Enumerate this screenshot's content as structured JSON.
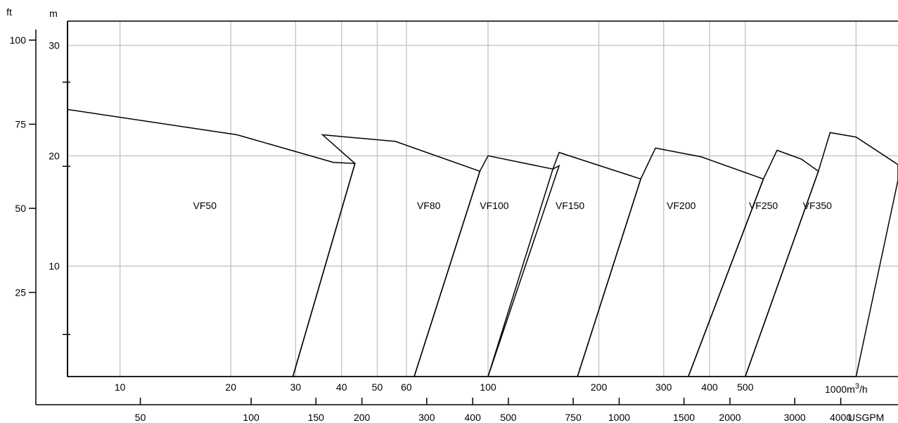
{
  "chart_data": {
    "type": "area",
    "title": "",
    "units": {
      "head_m": "m",
      "head_ft": "ft",
      "flow_m3h_prefix": "1000m",
      "flow_m3h_sup": "3",
      "flow_m3h_suffix": "/h",
      "flow_usgpm": "USGPM"
    },
    "flow_scale": "log",
    "xlim_m3h": [
      7.2,
      1300
    ],
    "ylim_m": [
      0,
      32.2
    ],
    "grid": true,
    "m3h_ticks": [
      {
        "value": 10,
        "label": "10"
      },
      {
        "value": 20,
        "label": "20"
      },
      {
        "value": 30,
        "label": "30"
      },
      {
        "value": 40,
        "label": "40"
      },
      {
        "value": 50,
        "label": "50"
      },
      {
        "value": 60,
        "label": "60"
      },
      {
        "value": 100,
        "label": "100"
      },
      {
        "value": 200,
        "label": "200"
      },
      {
        "value": 300,
        "label": "300"
      },
      {
        "value": 400,
        "label": "400"
      },
      {
        "value": 500,
        "label": "500"
      },
      {
        "value": 1000,
        "label": ""
      }
    ],
    "usgpm_ticks": [
      {
        "value": 50,
        "label": "50"
      },
      {
        "value": 100,
        "label": "100"
      },
      {
        "value": 150,
        "label": "150"
      },
      {
        "value": 200,
        "label": "200"
      },
      {
        "value": 300,
        "label": "300"
      },
      {
        "value": 400,
        "label": "400"
      },
      {
        "value": 500,
        "label": "500"
      },
      {
        "value": 750,
        "label": "750"
      },
      {
        "value": 1000,
        "label": "1000"
      },
      {
        "value": 1500,
        "label": "1500"
      },
      {
        "value": 2000,
        "label": "2000"
      },
      {
        "value": 3000,
        "label": "3000"
      },
      {
        "value": 4000,
        "label": "4000"
      }
    ],
    "m_ticks": [
      {
        "value": 10,
        "label": "10"
      },
      {
        "value": 20,
        "label": "20"
      },
      {
        "value": 30,
        "label": "30"
      }
    ],
    "ft_ticks": [
      {
        "value": 25,
        "label": "25"
      },
      {
        "value": 50,
        "label": "50"
      },
      {
        "value": 75,
        "label": "75"
      },
      {
        "value": 100,
        "label": "100"
      }
    ],
    "ft_minor_ticks": [
      12.5,
      62.5,
      87.5
    ],
    "series": [
      {
        "name": "VF50",
        "label_at": [
          17,
          15.5
        ],
        "boundary": [
          [
            7.2,
            24.2
          ],
          [
            20.8,
            21.9
          ],
          [
            38.0,
            19.4
          ],
          [
            43.5,
            19.3
          ],
          [
            29.5,
            0
          ],
          [
            7.2,
            0
          ]
        ]
      },
      {
        "name": "VF80",
        "label_at": [
          69,
          15.5
        ],
        "boundary": [
          [
            35.5,
            21.9
          ],
          [
            56,
            21.3
          ],
          [
            95,
            18.6
          ],
          [
            63,
            0
          ],
          [
            29.5,
            0
          ],
          [
            43.5,
            19.3
          ]
        ]
      },
      {
        "name": "VF100",
        "label_at": [
          104,
          15.5
        ],
        "boundary": [
          [
            100,
            20.0
          ],
          [
            150,
            18.8
          ],
          [
            156,
            19.1
          ],
          [
            100,
            0
          ],
          [
            63,
            0
          ],
          [
            95,
            18.6
          ]
        ]
      },
      {
        "name": "VF150",
        "label_at": [
          167,
          15.5
        ],
        "boundary": [
          [
            156,
            20.3
          ],
          [
            260,
            17.9
          ],
          [
            175,
            0
          ],
          [
            100,
            0
          ],
          [
            150,
            18.8
          ]
        ]
      },
      {
        "name": "VF200",
        "label_at": [
          335,
          15.5
        ],
        "boundary": [
          [
            285,
            20.7
          ],
          [
            380,
            19.9
          ],
          [
            560,
            17.9
          ],
          [
            350,
            0
          ],
          [
            175,
            0
          ],
          [
            260,
            17.9
          ]
        ]
      },
      {
        "name": "VF250",
        "label_at": [
          560,
          15.5
        ],
        "boundary": [
          [
            610,
            20.5
          ],
          [
            710,
            19.7
          ],
          [
            790,
            18.6
          ],
          [
            500,
            0
          ],
          [
            350,
            0
          ],
          [
            560,
            17.9
          ]
        ]
      },
      {
        "name": "VF350",
        "label_at": [
          785,
          15.5
        ],
        "boundary": [
          [
            850,
            22.1
          ],
          [
            1000,
            21.7
          ],
          [
            1300,
            19.2
          ],
          [
            1300,
            17.8
          ],
          [
            1000,
            0
          ],
          [
            500,
            0
          ],
          [
            790,
            18.6
          ]
        ]
      }
    ]
  }
}
